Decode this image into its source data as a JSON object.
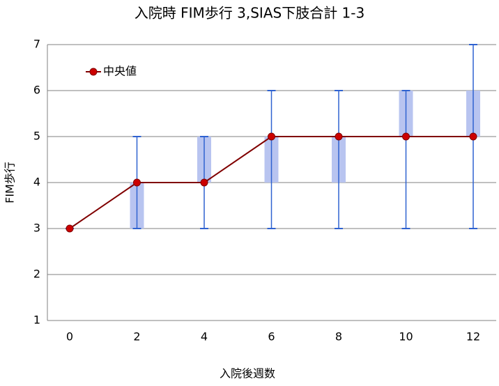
{
  "chart_data": {
    "type": "box",
    "title": "入院時 FIM歩行 3,SIAS下肢合計 1-3",
    "x_label": "入院後週数",
    "y_label": "FIM歩行",
    "categories": [
      "0",
      "2",
      "4",
      "6",
      "8",
      "10",
      "12"
    ],
    "series": [
      {
        "name": "中央値",
        "color": "#cc0000",
        "line_color": "#800000",
        "values": [
          3,
          4,
          4,
          5,
          5,
          5,
          5
        ]
      }
    ],
    "box_low": [
      3,
      3,
      4,
      4,
      4,
      5,
      5
    ],
    "box_high": [
      3,
      4,
      5,
      5,
      5,
      6,
      6
    ],
    "min": [
      3,
      3,
      3,
      3,
      3,
      3,
      3
    ],
    "max": [
      3,
      5,
      5,
      6,
      6,
      6,
      7
    ],
    "box_color": "#b8c4f0",
    "whisker_color": "#2f62d0",
    "ylim": [
      1,
      7
    ],
    "yticks": [
      1,
      2,
      3,
      4,
      5,
      6,
      7
    ],
    "grid": true,
    "legend": "upper left"
  }
}
